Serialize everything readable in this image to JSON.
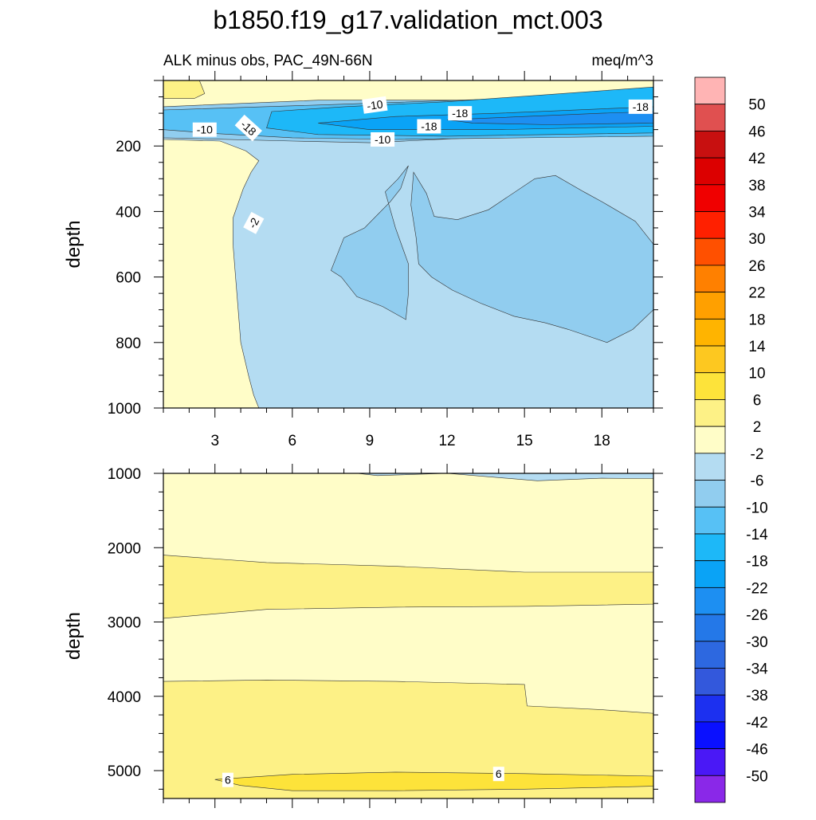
{
  "chart_data": {
    "type": "contour",
    "title": "b1850.f19_g17.validation_mct.003",
    "subtitle_left": "ALK minus obs, PAC_49N-66N",
    "subtitle_right": "meq/m^3",
    "x": {
      "range": [
        1,
        20
      ],
      "ticks": [
        3,
        6,
        9,
        12,
        15,
        18
      ],
      "tick_labels": [
        "3",
        "6",
        "9",
        "12",
        "15",
        "18"
      ]
    },
    "panels": [
      {
        "name": "upper",
        "ylabel": "depth",
        "ylim": [
          0,
          1000
        ],
        "reversed": true,
        "y_ticks": [
          200,
          400,
          600,
          800,
          1000
        ],
        "y_tick_labels": [
          "200",
          "400",
          "600",
          "800",
          "1000"
        ],
        "regions": [
          {
            "level": "-2..2",
            "color": "#fffdc8",
            "polygon": [
              [
                1,
                210
              ],
              [
                1,
                1000
              ],
              [
                20,
                1000
              ],
              [
                20,
                0
              ],
              [
                1,
                0
              ]
            ]
          },
          {
            "level": "-6..-2",
            "color": "#b4dcf2",
            "polygon": [
              [
                4.7,
                1000
              ],
              [
                4.5,
                960
              ],
              [
                4.3,
                900
              ],
              [
                4,
                800
              ],
              [
                3.9,
                700
              ],
              [
                3.8,
                600
              ],
              [
                3.7,
                500
              ],
              [
                3.7,
                420
              ],
              [
                4.1,
                330
              ],
              [
                4.4,
                280
              ],
              [
                4.7,
                245
              ],
              [
                4.2,
                215
              ],
              [
                3.2,
                185
              ],
              [
                1,
                180
              ],
              [
                1,
                120
              ],
              [
                20,
                120
              ],
              [
                20,
                1000
              ]
            ]
          },
          {
            "level": "-10..-6",
            "color": "#91cdef",
            "polygon": [
              [
                10.5,
                260
              ],
              [
                10.1,
                300
              ],
              [
                9.6,
                340
              ],
              [
                10,
                450
              ],
              [
                10.5,
                560
              ],
              [
                10.5,
                650
              ],
              [
                10.4,
                730
              ],
              [
                9.5,
                690
              ],
              [
                8.5,
                660
              ],
              [
                7.9,
                600
              ],
              [
                7.5,
                580
              ],
              [
                8,
                480
              ],
              [
                8.8,
                450
              ],
              [
                9.8,
                370
              ],
              [
                10.2,
                330
              ]
            ]
          },
          {
            "level": "-10..-6",
            "color": "#91cdef",
            "polygon": [
              [
                10.7,
                280
              ],
              [
                11.2,
                345
              ],
              [
                11.5,
                415
              ],
              [
                12.4,
                425
              ],
              [
                13.6,
                395
              ],
              [
                15.4,
                300
              ],
              [
                16.2,
                290
              ],
              [
                17.3,
                340
              ],
              [
                18,
                370
              ],
              [
                19.3,
                430
              ],
              [
                20,
                500
              ],
              [
                20,
                700
              ],
              [
                19.2,
                760
              ],
              [
                18.2,
                800
              ],
              [
                16.7,
                760
              ],
              [
                15.8,
                740
              ],
              [
                14.6,
                720
              ],
              [
                13.3,
                680
              ],
              [
                12.2,
                640
              ],
              [
                11.4,
                600
              ],
              [
                10.9,
                560
              ],
              [
                10.8,
                480
              ],
              [
                10.6,
                380
              ]
            ]
          },
          {
            "level": "2..6",
            "color": "#fdf186",
            "polygon": [
              [
                1,
                0
              ],
              [
                2.4,
                0
              ],
              [
                2.6,
                40
              ],
              [
                2.2,
                55
              ],
              [
                1,
                55
              ]
            ]
          },
          {
            "level": "-10..-6",
            "color": "#91cdef",
            "polygon": [
              [
                1,
                80
              ],
              [
                7,
                60
              ],
              [
                20,
                60
              ],
              [
                20,
                160
              ],
              [
                13,
                175
              ],
              [
                9,
                190
              ],
              [
                6,
                185
              ],
              [
                1,
                175
              ]
            ]
          },
          {
            "level": "-14..-10",
            "color": "#57c1f5",
            "polygon": [
              [
                1,
                90
              ],
              [
                7,
                75
              ],
              [
                20,
                40
              ],
              [
                20,
                170
              ],
              [
                10,
                180
              ],
              [
                6,
                175
              ],
              [
                3,
                162
              ],
              [
                1,
                150
              ]
            ]
          },
          {
            "level": "-18..-14",
            "color": "#1db8f8",
            "polygon": [
              [
                5.2,
                95
              ],
              [
                8,
                80
              ],
              [
                12,
                65
              ],
              [
                20,
                20
              ],
              [
                20,
                160
              ],
              [
                12,
                170
              ],
              [
                7,
                165
              ],
              [
                5,
                145
              ]
            ]
          },
          {
            "level": "-22..-18",
            "color": "#0aa3f6",
            "polygon": [
              [
                7,
                130
              ],
              [
                10,
                110
              ],
              [
                14,
                100
              ],
              [
                20,
                80
              ],
              [
                20,
                140
              ],
              [
                14,
                150
              ],
              [
                9,
                150
              ]
            ]
          },
          {
            "level": "-26..-22",
            "color": "#1d8ff2",
            "polygon": [
              [
                12,
                120
              ],
              [
                15,
                110
              ],
              [
                18,
                100
              ],
              [
                20,
                95
              ],
              [
                20,
                130
              ],
              [
                16,
                135
              ],
              [
                13,
                130
              ]
            ]
          }
        ],
        "labels": [
          {
            "text": "-10",
            "x": 9.2,
            "y": 75,
            "angle": -8
          },
          {
            "text": "-18",
            "x": 12.5,
            "y": 100,
            "angle": 0
          },
          {
            "text": "-18",
            "x": 19.5,
            "y": 80,
            "angle": 0
          },
          {
            "text": "-10",
            "x": 2.6,
            "y": 150,
            "angle": 0
          },
          {
            "text": "-18",
            "x": 4.3,
            "y": 145,
            "angle": 42
          },
          {
            "text": "-18",
            "x": 11.3,
            "y": 140,
            "angle": 0
          },
          {
            "text": "-10",
            "x": 9.5,
            "y": 180,
            "angle": 0
          },
          {
            "text": "-2",
            "x": 4.5,
            "y": 435,
            "angle": -62
          }
        ]
      },
      {
        "name": "lower",
        "ylabel": "depth",
        "ylim": [
          1000,
          5375
        ],
        "reversed": true,
        "y_ticks": [
          1000,
          2000,
          3000,
          4000,
          5000
        ],
        "y_tick_labels": [
          "1000",
          "2000",
          "3000",
          "4000",
          "5000"
        ],
        "regions": [
          {
            "level": "-2..2",
            "color": "#fffdc8",
            "polygon": [
              [
                1,
                1000
              ],
              [
                20,
                1000
              ],
              [
                20,
                5375
              ],
              [
                1,
                5375
              ]
            ]
          },
          {
            "level": "2..6",
            "color": "#fdf186",
            "polygon": [
              [
                1,
                2100
              ],
              [
                5,
                2200
              ],
              [
                10,
                2250
              ],
              [
                15,
                2330
              ],
              [
                20,
                2330
              ],
              [
                20,
                2760
              ],
              [
                15,
                2790
              ],
              [
                10,
                2800
              ],
              [
                5,
                2830
              ],
              [
                1,
                2950
              ]
            ]
          },
          {
            "level": "2..6",
            "color": "#fdf186",
            "polygon": [
              [
                1,
                3800
              ],
              [
                5,
                3780
              ],
              [
                10,
                3800
              ],
              [
                15,
                3840
              ],
              [
                15.1,
                4130
              ],
              [
                18,
                4180
              ],
              [
                20,
                4230
              ],
              [
                20,
                5375
              ],
              [
                1,
                5375
              ]
            ]
          },
          {
            "level": "6..10",
            "color": "#fde33a",
            "polygon": [
              [
                3,
                5120
              ],
              [
                6,
                5050
              ],
              [
                10,
                5020
              ],
              [
                15,
                5040
              ],
              [
                20,
                5075
              ],
              [
                20,
                5210
              ],
              [
                15,
                5250
              ],
              [
                10,
                5270
              ],
              [
                6,
                5270
              ],
              [
                4,
                5200
              ]
            ]
          },
          {
            "level": "-6..-2",
            "color": "#b4dcf2",
            "polygon": [
              [
                8.5,
                1000
              ],
              [
                20,
                1000
              ],
              [
                20,
                1070
              ],
              [
                18,
                1065
              ],
              [
                15.5,
                1100
              ],
              [
                12,
                1000
              ],
              [
                9.3,
                1030
              ]
            ]
          }
        ],
        "labels": [
          {
            "text": "6",
            "x": 3.5,
            "y": 5125,
            "angle": 0
          },
          {
            "text": "6",
            "x": 14,
            "y": 5045,
            "angle": 0
          }
        ]
      }
    ],
    "colorbar": {
      "labels": [
        "50",
        "46",
        "42",
        "38",
        "34",
        "30",
        "26",
        "22",
        "18",
        "14",
        "10",
        "6",
        "2",
        "-2",
        "-6",
        "-10",
        "-14",
        "-18",
        "-22",
        "-26",
        "-30",
        "-34",
        "-38",
        "-42",
        "-46",
        "-50"
      ],
      "colors": [
        "#ffb4b4",
        "#e05050",
        "#c81010",
        "#dc0000",
        "#f00000",
        "#ff2000",
        "#ff5000",
        "#ff8000",
        "#ffa000",
        "#ffb400",
        "#fdc820",
        "#fde33a",
        "#fdf186",
        "#fffdc8",
        "#b4dcf2",
        "#91cdef",
        "#57c1f5",
        "#1db8f8",
        "#0aa3f6",
        "#1d8ff2",
        "#2478e8",
        "#2d68e0",
        "#3358dc",
        "#1c30f0",
        "#0a10ff",
        "#4a18f6",
        "#8a28e8"
      ]
    }
  }
}
